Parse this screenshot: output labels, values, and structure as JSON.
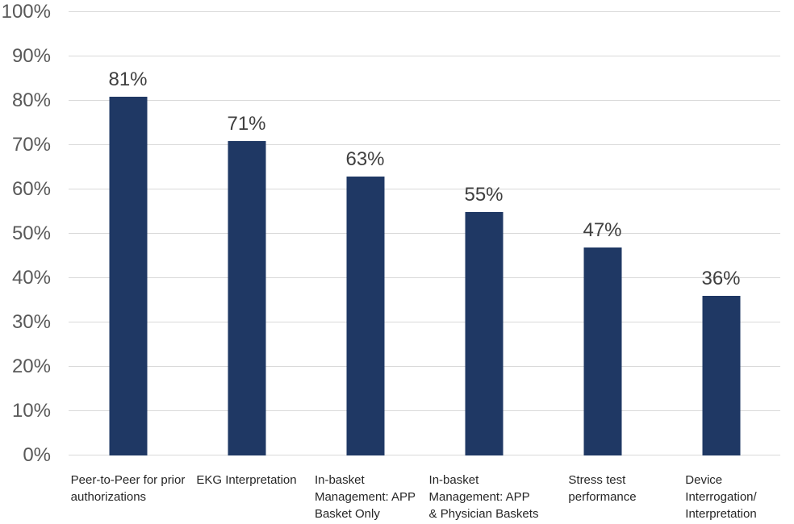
{
  "chart_data": {
    "type": "bar",
    "title": "",
    "xlabel": "",
    "ylabel": "",
    "categories": [
      "Peer-to-Peer for prior authorizations",
      "EKG Interpretation",
      "In-basket Management: APP Basket Only",
      "In-basket Management: APP & Physician Baskets",
      "Stress test performance",
      "Device Interrogation/ Interpretation"
    ],
    "category_lines": [
      [
        "Peer-to-Peer for prior",
        "authorizations"
      ],
      [
        "EKG Interpretation"
      ],
      [
        "In-basket",
        "Management: APP",
        "Basket Only"
      ],
      [
        "In-basket",
        "Management: APP",
        "& Physician Baskets"
      ],
      [
        "Stress test",
        "performance"
      ],
      [
        "Device",
        "Interrogation/",
        "Interpretation"
      ]
    ],
    "values": [
      81,
      71,
      63,
      55,
      47,
      36
    ],
    "value_labels": [
      "81%",
      "71%",
      "63%",
      "55%",
      "47%",
      "36%"
    ],
    "ylim": [
      0,
      100
    ],
    "yticks": [
      0,
      10,
      20,
      30,
      40,
      50,
      60,
      70,
      80,
      90,
      100
    ],
    "ytick_labels": [
      "0%",
      "10%",
      "20%",
      "30%",
      "40%",
      "50%",
      "60%",
      "70%",
      "80%",
      "90%",
      "100%"
    ],
    "grid": "horizontal",
    "legend": "none"
  },
  "colors": {
    "bar": "#1F3864",
    "gridline": "#D9D9D9",
    "axis_line": "#D9D9D9",
    "y_tick_label": "#595959",
    "data_label": "#3F3F3F",
    "category_label": "#262626",
    "background": "#FFFFFF"
  }
}
